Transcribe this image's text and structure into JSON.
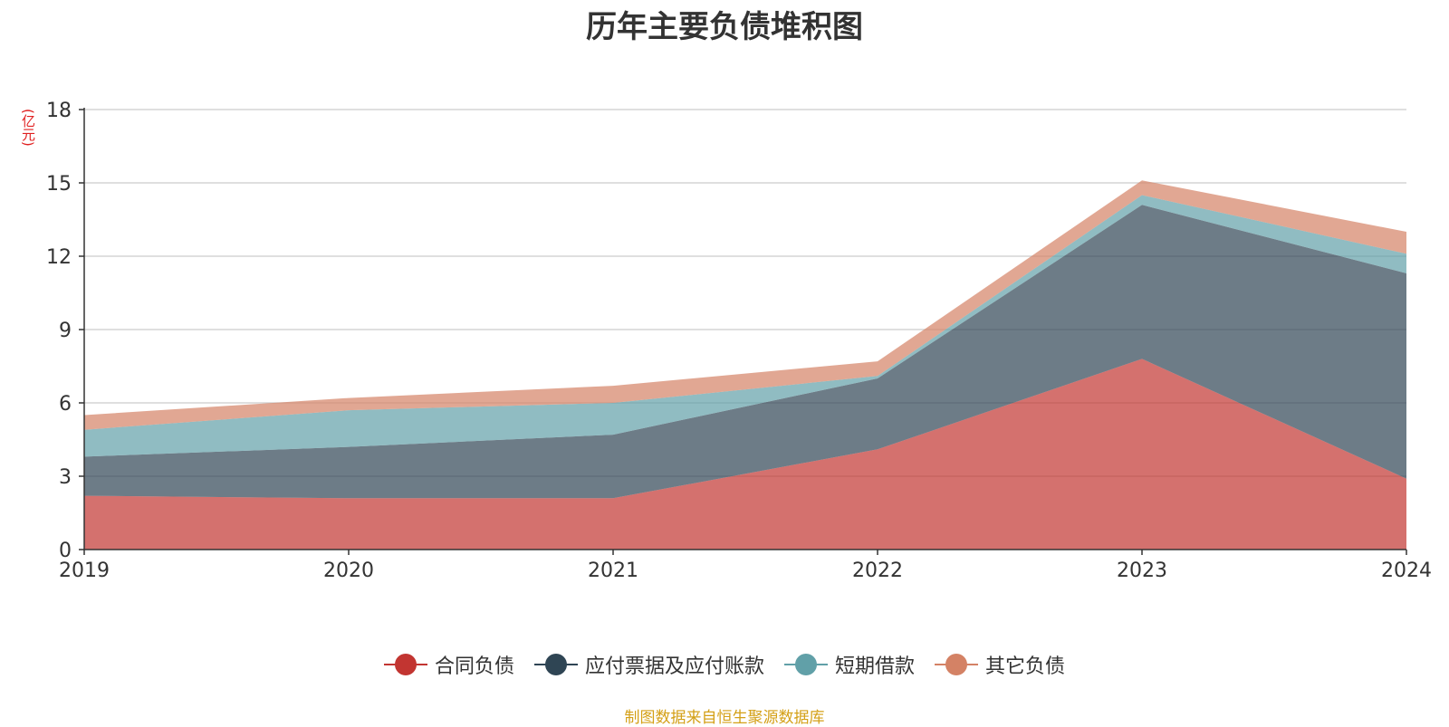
{
  "chart_data": {
    "type": "area",
    "stacked": true,
    "title": "历年主要负债堆积图",
    "unit": "(亿元)",
    "categories": [
      "2019",
      "2020",
      "2021",
      "2022",
      "2023",
      "2024"
    ],
    "ylim": [
      0,
      18
    ],
    "yticks": [
      0,
      3,
      6,
      9,
      12,
      15,
      18
    ],
    "grid": true,
    "legend_position": "bottom",
    "series": [
      {
        "name": "合同负债",
        "color": "#c23531",
        "values": [
          2.2,
          2.1,
          2.1,
          4.1,
          7.8,
          2.9
        ]
      },
      {
        "name": "应付票据及应付账款",
        "color": "#2f4554",
        "values": [
          1.6,
          2.1,
          2.6,
          2.9,
          6.3,
          8.4
        ]
      },
      {
        "name": "短期借款",
        "color": "#61a0a8",
        "values": [
          1.1,
          1.5,
          1.3,
          0.1,
          0.4,
          0.8
        ]
      },
      {
        "name": "其它负债",
        "color": "#d48265",
        "values": [
          0.6,
          0.5,
          0.7,
          0.6,
          0.6,
          0.9
        ]
      }
    ]
  },
  "footer": {
    "source": "制图数据来自恒生聚源数据库"
  }
}
